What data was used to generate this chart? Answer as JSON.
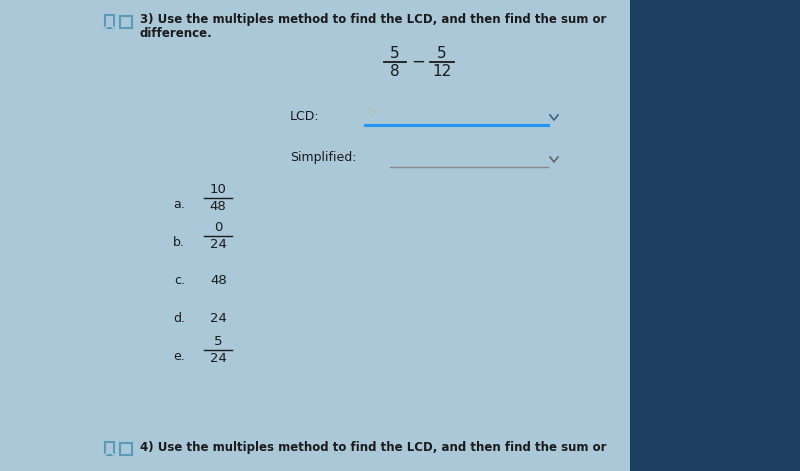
{
  "bg_color": "#aac8d8",
  "bg_right_color": "#1a3a5c",
  "title_line1": "3) Use the multiples method to find the LCD, and then find the sum or",
  "title_line2": "difference.",
  "fraction1_num": "5",
  "fraction1_den": "8",
  "fraction2_num": "5",
  "fraction2_den": "12",
  "operator": "−",
  "lcd_label": "LCD:",
  "simplified_label": "Simplified:",
  "choices": [
    {
      "letter": "a.",
      "num": "10",
      "den": "48",
      "is_fraction": true
    },
    {
      "letter": "b.",
      "num": "0",
      "den": "24",
      "is_fraction": true
    },
    {
      "letter": "c.",
      "value": "48",
      "is_fraction": false
    },
    {
      "letter": "d.",
      "value": "24",
      "is_fraction": false
    },
    {
      "letter": "e.",
      "num": "5",
      "den": "24",
      "is_fraction": true
    }
  ],
  "text_color": "#1a1a1a",
  "dropdown_line_color": "#2196F3",
  "simplified_line_color": "#888888",
  "icon_edge_color": "#5a9ab8",
  "bottom_text": "4) Use the multiples method to find the LCD, and then find the sum or"
}
